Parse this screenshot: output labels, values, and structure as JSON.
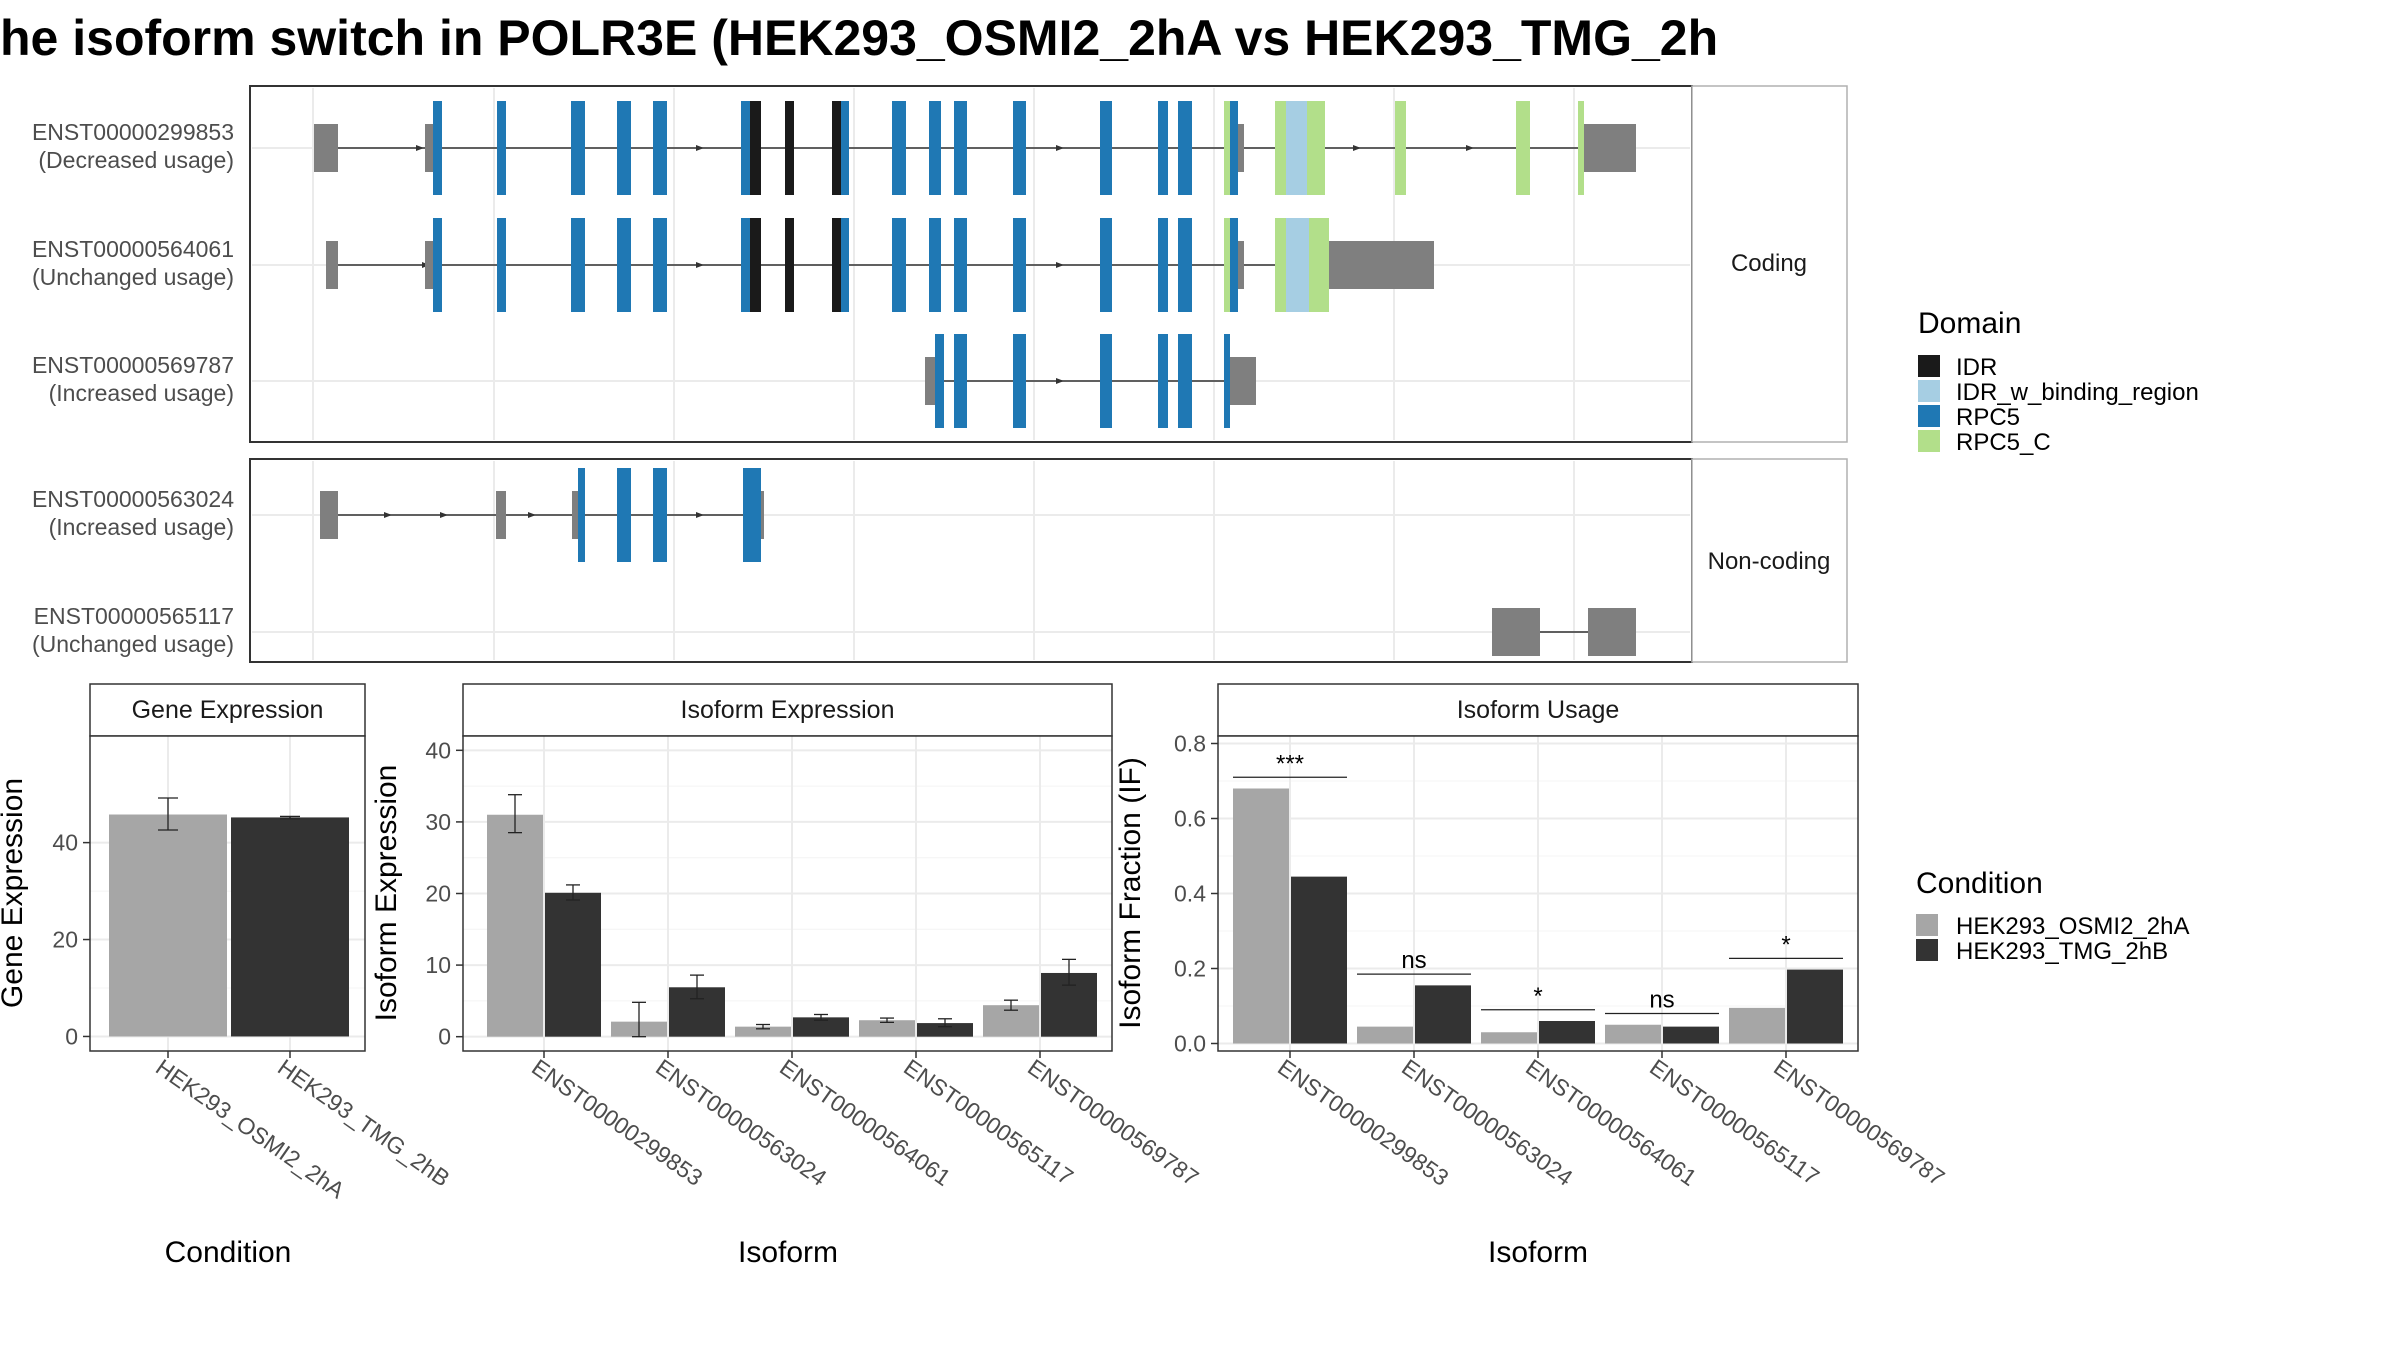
{
  "title": "he isoform switch in POLR3E (HEK293_OSMI2_2hA vs HEK293_TMG_2h",
  "colors": {
    "domain": {
      "IDR": "#1a1a1a",
      "IDR_w_binding_region": "#a6cee3",
      "RPC5": "#1f78b4",
      "RPC5_C": "#b2df8a"
    },
    "utr": "#7f7f7f",
    "condition": {
      "HEK293_OSMI2_2hA": "#a6a6a6",
      "HEK293_TMG_2hB": "#333333"
    },
    "grid": "#ebebeb",
    "panel_border": "#333333",
    "strip_border": "#b0b0b0"
  },
  "legend_domain": {
    "title": "Domain",
    "items": [
      "IDR",
      "IDR_w_binding_region",
      "RPC5",
      "RPC5_C"
    ]
  },
  "legend_condition": {
    "title": "Condition",
    "items": [
      "HEK293_OSMI2_2hA",
      "HEK293_TMG_2hB"
    ]
  },
  "structure": {
    "coding_strip": "Coding",
    "noncoding_strip": "Non-coding",
    "tracks": [
      {
        "panel": "coding",
        "id": "ENST00000299853",
        "usage": "(Decreased usage)"
      },
      {
        "panel": "coding",
        "id": "ENST00000564061",
        "usage": "(Unchanged usage)"
      },
      {
        "panel": "coding",
        "id": "ENST00000569787",
        "usage": "(Increased usage)"
      },
      {
        "panel": "noncoding",
        "id": "ENST00000563024",
        "usage": "(Increased usage)"
      },
      {
        "panel": "noncoding",
        "id": "ENST00000565117",
        "usage": "(Unchanged usage)"
      }
    ]
  },
  "chart_data": [
    {
      "type": "bar",
      "panel": "Gene Expression",
      "xlabel": "Condition",
      "ylabel": "Gene Expression",
      "ylim": [
        -3,
        62
      ],
      "yticks": [
        0,
        20,
        40
      ],
      "categories": [
        "HEK293_OSMI2_2hA",
        "HEK293_TMG_2hB"
      ],
      "values": [
        45.8,
        45.2
      ],
      "errors": [
        [
          42.6,
          49.2
        ],
        [
          44.9,
          45.4
        ]
      ]
    },
    {
      "type": "bar",
      "panel": "Isoform Expression",
      "xlabel": "Isoform",
      "ylabel": "Isoform Expression",
      "ylim": [
        -2,
        42
      ],
      "yticks": [
        0,
        10,
        20,
        30,
        40
      ],
      "categories": [
        "ENST00000299853",
        "ENST00000563024",
        "ENST00000564061",
        "ENST00000565117",
        "ENST00000569787"
      ],
      "series": [
        {
          "name": "HEK293_OSMI2_2hA",
          "values": [
            31.0,
            2.1,
            1.4,
            2.3,
            4.4
          ],
          "errors": [
            [
              28.5,
              33.8
            ],
            [
              0,
              4.8
            ],
            [
              1.1,
              1.7
            ],
            [
              2.0,
              2.6
            ],
            [
              3.7,
              5.1
            ]
          ]
        },
        {
          "name": "HEK293_TMG_2hB",
          "values": [
            20.1,
            6.9,
            2.7,
            1.9,
            8.9
          ],
          "errors": [
            [
              19.1,
              21.2
            ],
            [
              5.3,
              8.6
            ],
            [
              2.3,
              3.1
            ],
            [
              1.4,
              2.5
            ],
            [
              7.2,
              10.8
            ]
          ]
        }
      ]
    },
    {
      "type": "bar",
      "panel": "Isoform Usage",
      "xlabel": "Isoform",
      "ylabel": "Isoform Fraction (IF)",
      "ylim": [
        -0.02,
        0.82
      ],
      "yticks": [
        "0.0",
        "0.2",
        "0.4",
        "0.6",
        "0.8"
      ],
      "categories": [
        "ENST00000299853",
        "ENST00000563024",
        "ENST00000564061",
        "ENST00000565117",
        "ENST00000569787"
      ],
      "series": [
        {
          "name": "HEK293_OSMI2_2hA",
          "values": [
            0.68,
            0.045,
            0.03,
            0.05,
            0.095
          ]
        },
        {
          "name": "HEK293_TMG_2hB",
          "values": [
            0.445,
            0.155,
            0.06,
            0.045,
            0.197
          ]
        }
      ],
      "significance": [
        "***",
        "ns",
        "*",
        "ns",
        "*"
      ]
    }
  ]
}
